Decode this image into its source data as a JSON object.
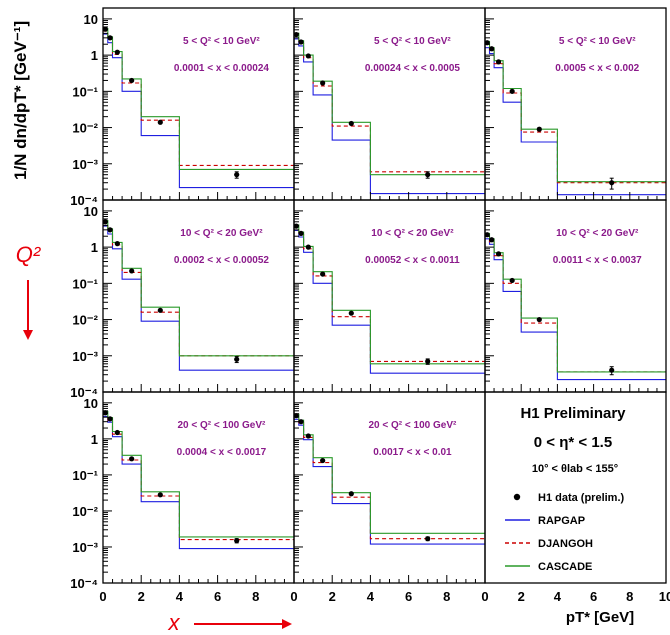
{
  "figure": {
    "y_axis_label": "1/N dn/dpT* [GeV⁻¹]",
    "x_axis_label": "pT* [GeV]",
    "q2_arrow_label": "Q²",
    "x_arrow_label": "x",
    "x_ticks": [
      "0",
      "2",
      "4",
      "6",
      "8",
      "10"
    ],
    "y_ticks": [
      "10",
      "1",
      "10⁻¹",
      "10⁻²",
      "10⁻³",
      "10⁻⁴"
    ],
    "bin_edges": [
      0,
      0.25,
      0.5,
      1,
      2,
      4,
      10
    ]
  },
  "legend": {
    "title": "H1 Preliminary",
    "eta_range": "0 < η* < 1.5",
    "theta_range": "10° < θlab < 155°",
    "entries": [
      {
        "label": "H1 data (prelim.)",
        "style": "marker"
      },
      {
        "label": "RAPGAP",
        "style": "solid",
        "color": "#1f1fe0"
      },
      {
        "label": "DJANGOH",
        "style": "dashed",
        "color": "#cc0000"
      },
      {
        "label": "CASCADE",
        "style": "solid",
        "color": "#2a9a2a"
      }
    ]
  },
  "chart_data": [
    {
      "type": "line",
      "q2": "5 < Q² < 10 GeV²",
      "x_range": "0.0001 < x < 0.00024",
      "xlim": [
        0,
        10
      ],
      "ylim": [
        0.0001,
        20
      ],
      "y_scale": "log",
      "data_x": [
        0.12,
        0.37,
        0.75,
        1.5,
        3,
        7
      ],
      "data_y": [
        5.2,
        3.0,
        1.2,
        0.2,
        0.014,
        0.0005
      ],
      "data_err": [
        0.3,
        0.2,
        0.08,
        0.015,
        0.001,
        0.0001
      ],
      "series": [
        {
          "name": "RAPGAP",
          "values": [
            3.8,
            2.2,
            0.85,
            0.1,
            0.006,
            0.00022
          ]
        },
        {
          "name": "DJANGOH",
          "values": [
            4.6,
            2.7,
            1.05,
            0.17,
            0.016,
            0.0009
          ]
        },
        {
          "name": "CASCADE",
          "values": [
            5.4,
            3.2,
            1.25,
            0.22,
            0.02,
            0.0007
          ]
        }
      ]
    },
    {
      "type": "line",
      "q2": "5 < Q² < 10 GeV²",
      "x_range": "0.00024 < x < 0.0005",
      "xlim": [
        0,
        10
      ],
      "ylim": [
        0.0001,
        20
      ],
      "y_scale": "log",
      "data_x": [
        0.12,
        0.37,
        0.75,
        1.5,
        3,
        7
      ],
      "data_y": [
        3.7,
        2.3,
        0.95,
        0.17,
        0.013,
        0.0005
      ],
      "data_err": [
        0.25,
        0.15,
        0.07,
        0.012,
        0.001,
        0.0001
      ],
      "series": [
        {
          "name": "RAPGAP",
          "values": [
            2.8,
            1.8,
            0.65,
            0.08,
            0.0045,
            0.00015
          ]
        },
        {
          "name": "DJANGOH",
          "values": [
            3.4,
            2.1,
            0.85,
            0.14,
            0.011,
            0.0006
          ]
        },
        {
          "name": "CASCADE",
          "values": [
            4.0,
            2.5,
            1.0,
            0.19,
            0.014,
            0.0005
          ]
        }
      ]
    },
    {
      "type": "line",
      "q2": "5 < Q² < 10 GeV²",
      "x_range": "0.0005 < x < 0.002",
      "xlim": [
        0,
        10
      ],
      "ylim": [
        0.0001,
        20
      ],
      "y_scale": "log",
      "data_x": [
        0.12,
        0.37,
        0.75,
        1.5,
        3,
        7
      ],
      "data_y": [
        2.2,
        1.5,
        0.65,
        0.1,
        0.009,
        0.0003
      ],
      "data_err": [
        0.15,
        0.1,
        0.05,
        0.008,
        0.0008,
        0.0001
      ],
      "series": [
        {
          "name": "RAPGAP",
          "values": [
            1.6,
            1.1,
            0.45,
            0.05,
            0.004,
            0.00014
          ]
        },
        {
          "name": "DJANGOH",
          "values": [
            2.0,
            1.4,
            0.58,
            0.09,
            0.0075,
            0.0003
          ]
        },
        {
          "name": "CASCADE",
          "values": [
            2.4,
            1.6,
            0.7,
            0.12,
            0.009,
            0.00032
          ]
        }
      ]
    },
    {
      "type": "line",
      "q2": "10 < Q² < 20 GeV²",
      "x_range": "0.0002 < x < 0.00052",
      "xlim": [
        0,
        10
      ],
      "ylim": [
        0.0001,
        20
      ],
      "y_scale": "log",
      "data_x": [
        0.12,
        0.37,
        0.75,
        1.5,
        3,
        7
      ],
      "data_y": [
        5.0,
        3.0,
        1.25,
        0.22,
        0.018,
        0.0008
      ],
      "data_err": [
        0.3,
        0.2,
        0.08,
        0.015,
        0.0012,
        0.00015
      ],
      "series": [
        {
          "name": "RAPGAP",
          "values": [
            3.8,
            2.3,
            0.9,
            0.13,
            0.009,
            0.0004
          ]
        },
        {
          "name": "DJANGOH",
          "values": [
            4.6,
            2.8,
            1.15,
            0.2,
            0.016,
            0.001
          ]
        },
        {
          "name": "CASCADE",
          "values": [
            5.4,
            3.2,
            1.35,
            0.26,
            0.022,
            0.001
          ]
        }
      ]
    },
    {
      "type": "line",
      "q2": "10 < Q² < 20 GeV²",
      "x_range": "0.00052 < x < 0.0011",
      "xlim": [
        0,
        10
      ],
      "ylim": [
        0.0001,
        20
      ],
      "y_scale": "log",
      "data_x": [
        0.12,
        0.37,
        0.75,
        1.5,
        3,
        7
      ],
      "data_y": [
        3.8,
        2.4,
        1.0,
        0.18,
        0.015,
        0.0007
      ],
      "data_err": [
        0.25,
        0.15,
        0.07,
        0.012,
        0.001,
        0.00012
      ],
      "series": [
        {
          "name": "RAPGAP",
          "values": [
            2.9,
            1.9,
            0.72,
            0.1,
            0.007,
            0.00033
          ]
        },
        {
          "name": "DJANGOH",
          "values": [
            3.5,
            2.2,
            0.9,
            0.16,
            0.012,
            0.0007
          ]
        },
        {
          "name": "CASCADE",
          "values": [
            4.1,
            2.6,
            1.05,
            0.21,
            0.018,
            0.0006
          ]
        }
      ]
    },
    {
      "type": "line",
      "q2": "10 < Q² < 20 GeV²",
      "x_range": "0.0011 < x < 0.0037",
      "xlim": [
        0,
        10
      ],
      "ylim": [
        0.0001,
        20
      ],
      "y_scale": "log",
      "data_x": [
        0.12,
        0.37,
        0.75,
        1.5,
        3,
        7
      ],
      "data_y": [
        2.2,
        1.6,
        0.65,
        0.12,
        0.01,
        0.0004
      ],
      "data_err": [
        0.15,
        0.1,
        0.05,
        0.008,
        0.0008,
        0.0001
      ],
      "series": [
        {
          "name": "RAPGAP",
          "values": [
            1.7,
            1.2,
            0.45,
            0.06,
            0.0045,
            0.00022
          ]
        },
        {
          "name": "DJANGOH",
          "values": [
            2.0,
            1.4,
            0.58,
            0.1,
            0.008,
            0.00036
          ]
        },
        {
          "name": "CASCADE",
          "values": [
            2.4,
            1.7,
            0.7,
            0.13,
            0.011,
            0.00036
          ]
        }
      ]
    },
    {
      "type": "line",
      "q2": "20 < Q² < 100 GeV²",
      "x_range": "0.0004 < x < 0.0017",
      "xlim": [
        0,
        10
      ],
      "ylim": [
        0.0001,
        20
      ],
      "y_scale": "log",
      "data_x": [
        0.12,
        0.37,
        0.75,
        1.5,
        3,
        7
      ],
      "data_y": [
        5.3,
        3.6,
        1.5,
        0.28,
        0.028,
        0.0015
      ],
      "data_err": [
        0.3,
        0.2,
        0.1,
        0.02,
        0.002,
        0.0002
      ],
      "series": [
        {
          "name": "RAPGAP",
          "values": [
            4.2,
            2.9,
            1.15,
            0.2,
            0.018,
            0.0009
          ]
        },
        {
          "name": "DJANGOH",
          "values": [
            4.8,
            3.3,
            1.35,
            0.26,
            0.026,
            0.0016
          ]
        },
        {
          "name": "CASCADE",
          "values": [
            5.8,
            3.9,
            1.6,
            0.35,
            0.034,
            0.0019
          ]
        }
      ]
    },
    {
      "type": "line",
      "q2": "20 < Q² < 100 GeV²",
      "x_range": "0.0017 < x < 0.01",
      "xlim": [
        0,
        10
      ],
      "ylim": [
        0.0001,
        20
      ],
      "y_scale": "log",
      "data_x": [
        0.12,
        0.37,
        0.75,
        1.5,
        3,
        7
      ],
      "data_y": [
        4.4,
        3.0,
        1.2,
        0.25,
        0.03,
        0.0017
      ],
      "data_err": [
        0.3,
        0.2,
        0.08,
        0.018,
        0.002,
        0.0002
      ],
      "series": [
        {
          "name": "RAPGAP",
          "values": [
            3.5,
            2.4,
            0.95,
            0.17,
            0.016,
            0.0012
          ]
        },
        {
          "name": "DJANGOH",
          "values": [
            4.1,
            2.8,
            1.1,
            0.22,
            0.024,
            0.0017
          ]
        },
        {
          "name": "CASCADE",
          "values": [
            4.8,
            3.3,
            1.3,
            0.3,
            0.032,
            0.0024
          ]
        }
      ]
    }
  ]
}
